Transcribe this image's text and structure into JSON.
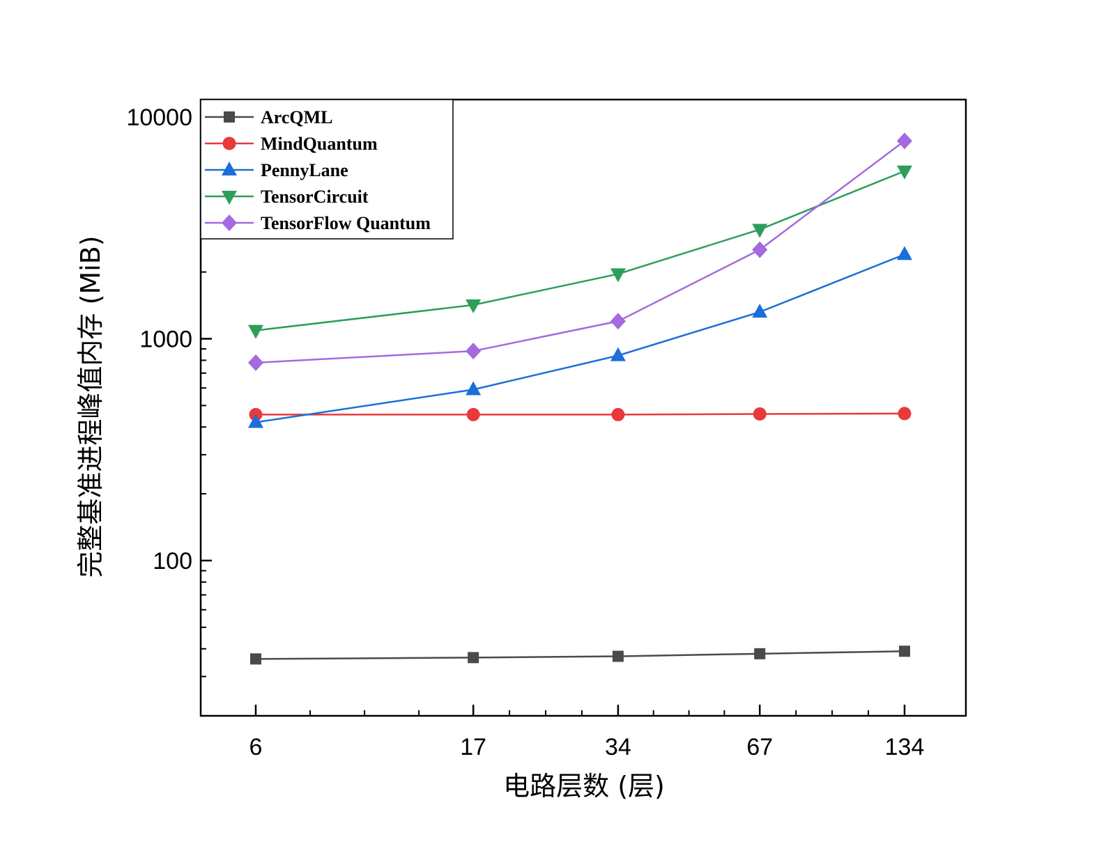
{
  "chart_data": {
    "type": "line",
    "xlabel": "电路层数 (层)",
    "ylabel": "完整基准进程峰值内存 (MiB)",
    "x_scale": "log",
    "y_scale": "log",
    "x": [
      6,
      17,
      34,
      67,
      134
    ],
    "x_ticks": [
      "6",
      "17",
      "34",
      "67",
      "134"
    ],
    "y_ticks": [
      "100",
      "1000",
      "10000"
    ],
    "ylim": [
      30,
      12000
    ],
    "legend_position": "top-left",
    "grid": false,
    "series": [
      {
        "name": "ArcQML",
        "color": "#4a4a4a",
        "marker": "square",
        "values": [
          36,
          36.5,
          37,
          38,
          39
        ]
      },
      {
        "name": "MindQuantum",
        "color": "#e8393b",
        "marker": "circle",
        "values": [
          455,
          455,
          455,
          458,
          460
        ]
      },
      {
        "name": "PennyLane",
        "color": "#1a6fd8",
        "marker": "triangle-up",
        "values": [
          420,
          590,
          840,
          1320,
          2400
        ]
      },
      {
        "name": "TensorCircuit",
        "color": "#2e9e5b",
        "marker": "triangle-down",
        "values": [
          1090,
          1420,
          1960,
          3110,
          5700
        ]
      },
      {
        "name": "TensorFlow Quantum",
        "color": "#a569e0",
        "marker": "diamond",
        "values": [
          780,
          880,
          1200,
          2520,
          7800
        ]
      }
    ]
  }
}
